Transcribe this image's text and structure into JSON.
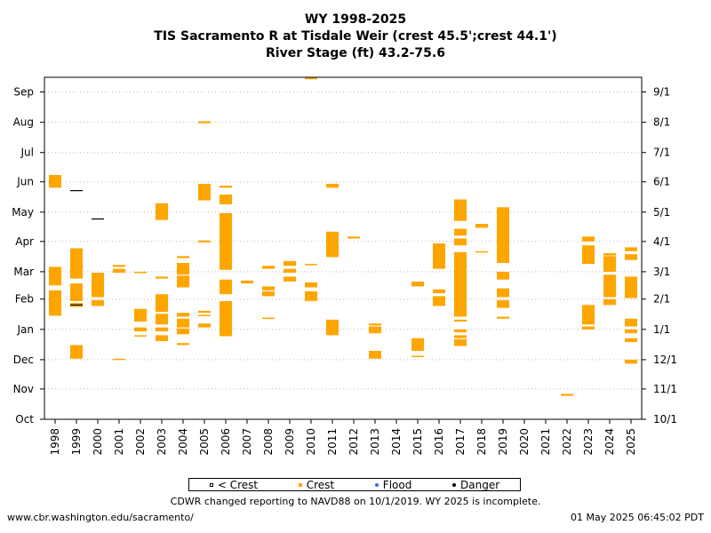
{
  "header": {
    "line1": "WY 1998-2025",
    "line2": "TIS Sacramento R at Tisdale Weir (crest 45.5';crest 44.1')",
    "line3": "River Stage (ft) 43.2-75.6"
  },
  "legend": {
    "below_crest": "< Crest",
    "crest": "Crest",
    "flood": "Flood",
    "danger": "Danger"
  },
  "note": "CDWR changed reporting to NAVD88 on 10/1/2019. WY 2025 is incomplete.",
  "footer": {
    "url": "www.cbr.washington.edu/sacramento/",
    "timestamp": "01 May 2025 06:45:02 PDT"
  },
  "chart_data": {
    "type": "event-timeline",
    "x_categories": [
      "1998",
      "1999",
      "2000",
      "2001",
      "2002",
      "2003",
      "2004",
      "2005",
      "2006",
      "2007",
      "2008",
      "2009",
      "2010",
      "2011",
      "2012",
      "2013",
      "2014",
      "2015",
      "2016",
      "2017",
      "2018",
      "2019",
      "2020",
      "2021",
      "2022",
      "2023",
      "2024",
      "2025"
    ],
    "y_left_ticks": [
      "Oct",
      "Nov",
      "Dec",
      "Jan",
      "Feb",
      "Mar",
      "Apr",
      "May",
      "Jun",
      "Jul",
      "Aug",
      "Sep"
    ],
    "y_right_ticks": [
      "10/1",
      "11/1",
      "12/1",
      "1/1",
      "2/1",
      "3/1",
      "4/1",
      "5/1",
      "6/1",
      "7/1",
      "8/1",
      "9/1"
    ],
    "y_unit": "day of water year (0 = Oct 1)",
    "ylim": [
      0,
      350
    ],
    "grid": "horizontal dotted",
    "legend_position": "bottom",
    "colors": {
      "crest": "#ffa500",
      "danger": "#000000",
      "flood": "#4169e1",
      "grid": "#bbbbbb"
    },
    "crest_periods": [
      {
        "year": "1998",
        "ranges": [
          [
            106,
            132
          ],
          [
            137,
            156
          ],
          [
            237,
            250
          ]
        ]
      },
      {
        "year": "1999",
        "ranges": [
          [
            62,
            76
          ],
          [
            115,
            119
          ],
          [
            121,
            139
          ],
          [
            144,
            175
          ]
        ]
      },
      {
        "year": "2000",
        "ranges": [
          [
            116,
            122
          ],
          [
            125,
            150
          ]
        ]
      },
      {
        "year": "2001",
        "ranges": [
          [
            150,
            154
          ],
          [
            156,
            158
          ],
          [
            61,
            62
          ]
        ]
      },
      {
        "year": "2002",
        "ranges": [
          [
            85,
            86
          ],
          [
            90,
            94
          ],
          [
            100,
            113
          ],
          [
            150,
            151
          ]
        ]
      },
      {
        "year": "2003",
        "ranges": [
          [
            80,
            86
          ],
          [
            90,
            94
          ],
          [
            97,
            108
          ],
          [
            110,
            128
          ],
          [
            144,
            146
          ],
          [
            204,
            221
          ]
        ]
      },
      {
        "year": "2004",
        "ranges": [
          [
            76,
            78
          ],
          [
            87,
            93
          ],
          [
            94,
            103
          ],
          [
            105,
            109
          ],
          [
            135,
            147
          ],
          [
            148,
            160
          ],
          [
            165,
            167
          ]
        ]
      },
      {
        "year": "2005",
        "ranges": [
          [
            94,
            98
          ],
          [
            106,
            107
          ],
          [
            109,
            111
          ],
          [
            181,
            183
          ],
          [
            224,
            241
          ],
          [
            303,
            305
          ]
        ]
      },
      {
        "year": "2006",
        "ranges": [
          [
            85,
            121
          ],
          [
            128,
            143
          ],
          [
            153,
            211
          ],
          [
            220,
            230
          ],
          [
            237,
            239
          ]
        ]
      },
      {
        "year": "2007",
        "ranges": [
          [
            139,
            142
          ]
        ]
      },
      {
        "year": "2008",
        "ranges": [
          [
            103,
            104
          ],
          [
            126,
            131
          ],
          [
            132,
            136
          ],
          [
            154,
            157
          ]
        ]
      },
      {
        "year": "2009",
        "ranges": [
          [
            141,
            146
          ],
          [
            150,
            154
          ],
          [
            157,
            162
          ]
        ]
      },
      {
        "year": "2010",
        "ranges": [
          [
            121,
            131
          ],
          [
            135,
            140
          ],
          [
            158,
            159
          ],
          [
            348,
            350
          ]
        ]
      },
      {
        "year": "2011",
        "ranges": [
          [
            86,
            102
          ],
          [
            166,
            192
          ],
          [
            237,
            241
          ]
        ]
      },
      {
        "year": "2012",
        "ranges": [
          [
            185,
            187
          ]
        ]
      },
      {
        "year": "2013",
        "ranges": [
          [
            62,
            70
          ],
          [
            88,
            95
          ],
          [
            96,
            98
          ]
        ]
      },
      {
        "year": "2015",
        "ranges": [
          [
            64,
            65
          ],
          [
            70,
            83
          ],
          [
            136,
            141
          ]
        ]
      },
      {
        "year": "2016",
        "ranges": [
          [
            116,
            126
          ],
          [
            129,
            133
          ],
          [
            154,
            180
          ]
        ]
      },
      {
        "year": "2017",
        "ranges": [
          [
            75,
            82
          ],
          [
            83,
            86
          ],
          [
            89,
            92
          ],
          [
            100,
            102
          ],
          [
            105,
            171
          ],
          [
            178,
            185
          ],
          [
            188,
            195
          ],
          [
            203,
            225
          ]
        ]
      },
      {
        "year": "2018",
        "ranges": [
          [
            171,
            172
          ],
          [
            196,
            200
          ]
        ]
      },
      {
        "year": "2019",
        "ranges": [
          [
            103,
            105
          ],
          [
            114,
            122
          ],
          [
            125,
            134
          ],
          [
            143,
            151
          ],
          [
            160,
            217
          ]
        ]
      },
      {
        "year": "2022",
        "ranges": [
          [
            24,
            26
          ]
        ]
      },
      {
        "year": "2023",
        "ranges": [
          [
            92,
            95
          ],
          [
            97,
            117
          ],
          [
            159,
            178
          ],
          [
            182,
            187
          ]
        ]
      },
      {
        "year": "2024",
        "ranges": [
          [
            117,
            123
          ],
          [
            125,
            148
          ],
          [
            151,
            167
          ],
          [
            168,
            169
          ],
          [
            170,
            170
          ]
        ]
      },
      {
        "year": "2025",
        "ranges": [
          [
            57,
            61
          ],
          [
            79,
            83
          ],
          [
            88,
            92
          ],
          [
            95,
            103
          ],
          [
            124,
            146
          ],
          [
            163,
            169
          ],
          [
            172,
            176
          ]
        ]
      }
    ],
    "danger_marks": [
      {
        "year": "1999",
        "day": 234
      },
      {
        "year": "1999",
        "day": 117
      },
      {
        "year": "2000",
        "day": 205
      }
    ]
  }
}
